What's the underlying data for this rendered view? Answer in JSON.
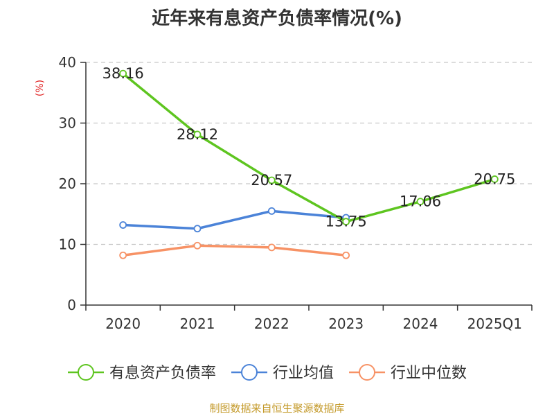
{
  "chart_data": {
    "type": "line",
    "title": "近年来有息资产负债率情况(%)",
    "ylabel": "(%)",
    "xlabel": "",
    "ylim": [
      0,
      40
    ],
    "yticks": [
      0,
      10,
      20,
      30,
      40
    ],
    "grid": "horizontal-dashed",
    "categories": [
      "2020",
      "2021",
      "2022",
      "2023",
      "2024",
      "2025Q1"
    ],
    "series": [
      {
        "name": "有息资产负债率",
        "color": "#5ec520",
        "values": [
          38.16,
          28.12,
          20.57,
          13.75,
          17.06,
          20.75
        ],
        "data_labels": [
          "38.16",
          "28.12",
          "20.57",
          "13.75",
          "17.06",
          "20.75"
        ]
      },
      {
        "name": "行业均值",
        "color": "#4b83d8",
        "values": [
          13.2,
          12.6,
          15.5,
          14.4,
          null,
          null
        ]
      },
      {
        "name": "行业中位数",
        "color": "#f79265",
        "values": [
          8.2,
          9.8,
          9.5,
          8.2,
          null,
          null
        ]
      }
    ],
    "legend_position": "bottom",
    "source": "制图数据来自恒生聚源数据库",
    "source_color": "#c49a2a",
    "ylabel_color": "#e02020"
  }
}
